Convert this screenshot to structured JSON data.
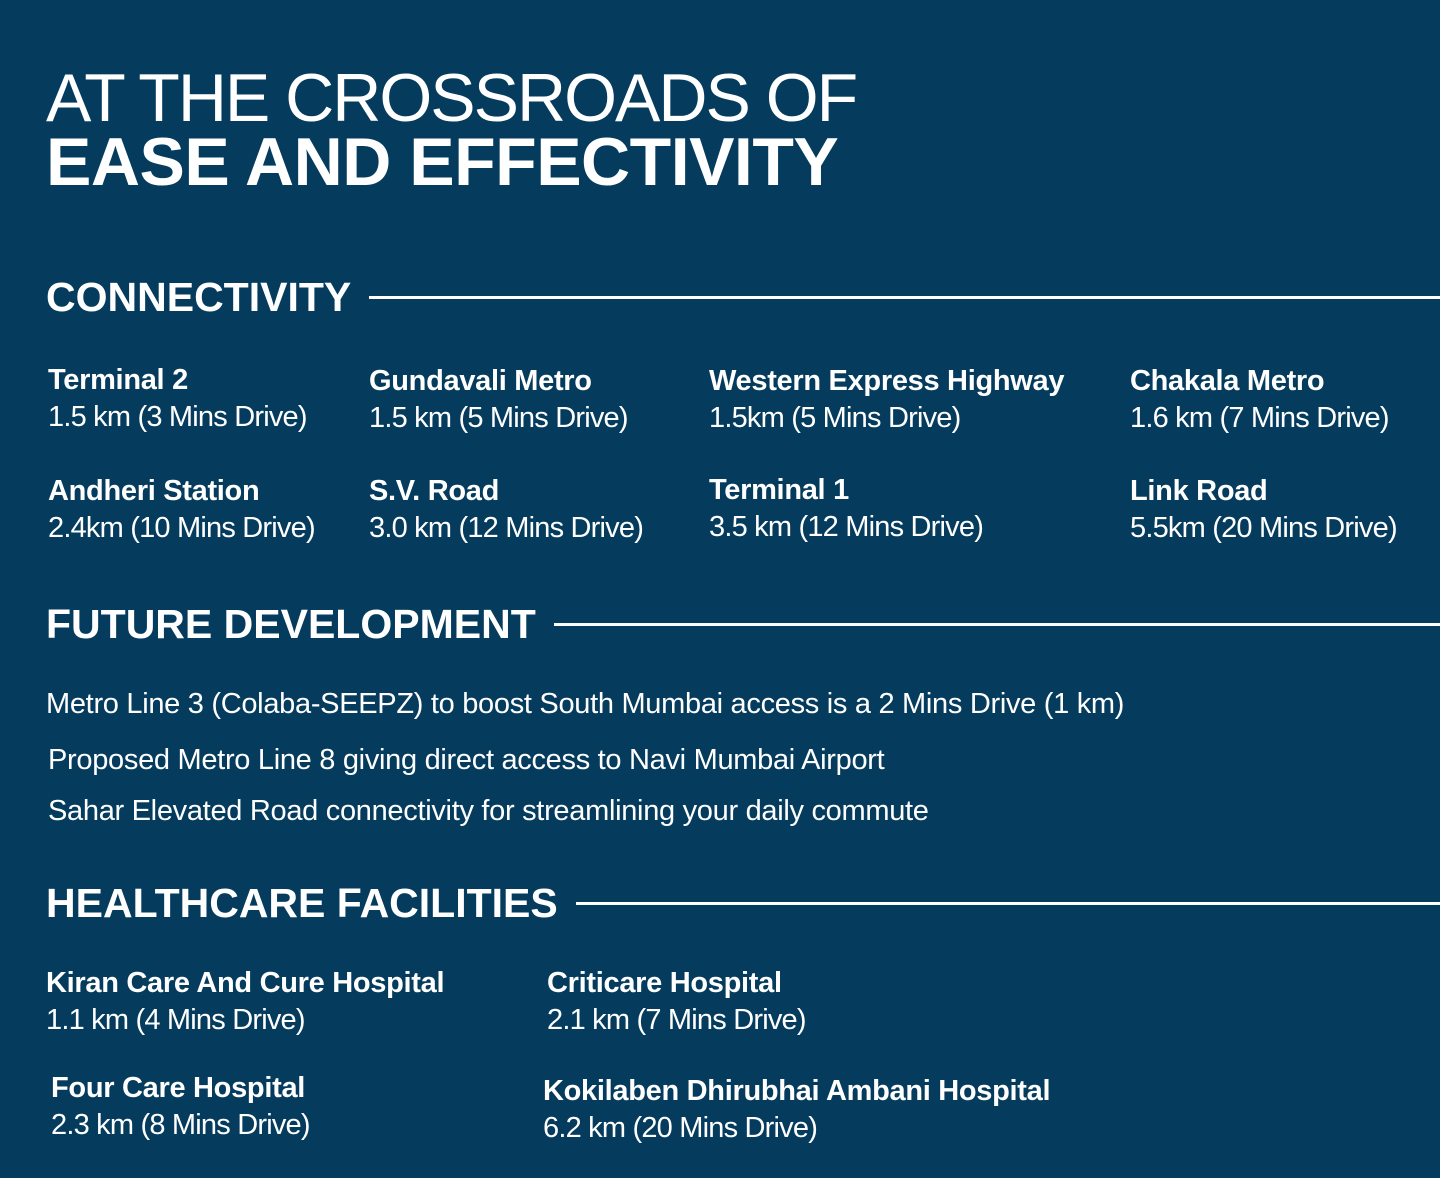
{
  "header": {
    "title_line1": "AT THE CROSSROADS OF",
    "title_line2": "EASE AND EFFECTIVITY"
  },
  "connectivity": {
    "heading": "CONNECTIVITY",
    "items": [
      {
        "name": "Terminal 2",
        "distance": "1.5 km (3 Mins Drive)"
      },
      {
        "name": "Gundavali Metro",
        "distance": "1.5 km (5 Mins Drive)"
      },
      {
        "name": "Western Express Highway",
        "distance": "1.5km (5 Mins Drive)"
      },
      {
        "name": "Chakala Metro",
        "distance": "1.6 km (7 Mins Drive)"
      },
      {
        "name": "Andheri Station",
        "distance": "2.4km (10 Mins Drive)"
      },
      {
        "name": "S.V. Road",
        "distance": "3.0 km (12 Mins Drive)"
      },
      {
        "name": "Terminal 1",
        "distance": "3.5 km (12 Mins Drive)"
      },
      {
        "name": "Link Road",
        "distance": "5.5km (20 Mins Drive)"
      }
    ]
  },
  "future": {
    "heading": "FUTURE DEVELOPMENT",
    "lines": [
      "Metro Line 3 (Colaba-SEEPZ) to boost South Mumbai access is a 2 Mins Drive (1 km)",
      "Proposed Metro Line 8 giving direct access to Navi Mumbai Airport",
      "Sahar Elevated Road connectivity for streamlining your daily commute"
    ]
  },
  "healthcare": {
    "heading": "HEALTHCARE FACILITIES",
    "items": [
      {
        "name": "Kiran Care And Cure Hospital",
        "distance": "1.1 km (4 Mins Drive)"
      },
      {
        "name": "Criticare Hospital",
        "distance": "2.1 km (7 Mins Drive)"
      },
      {
        "name": "Four Care Hospital",
        "distance": "2.3 km (8 Mins Drive)"
      },
      {
        "name": "Kokilaben Dhirubhai Ambani Hospital",
        "distance": "6.2 km (20 Mins Drive)"
      }
    ]
  },
  "colors": {
    "background": "#053c5e",
    "text": "#ffffff"
  }
}
